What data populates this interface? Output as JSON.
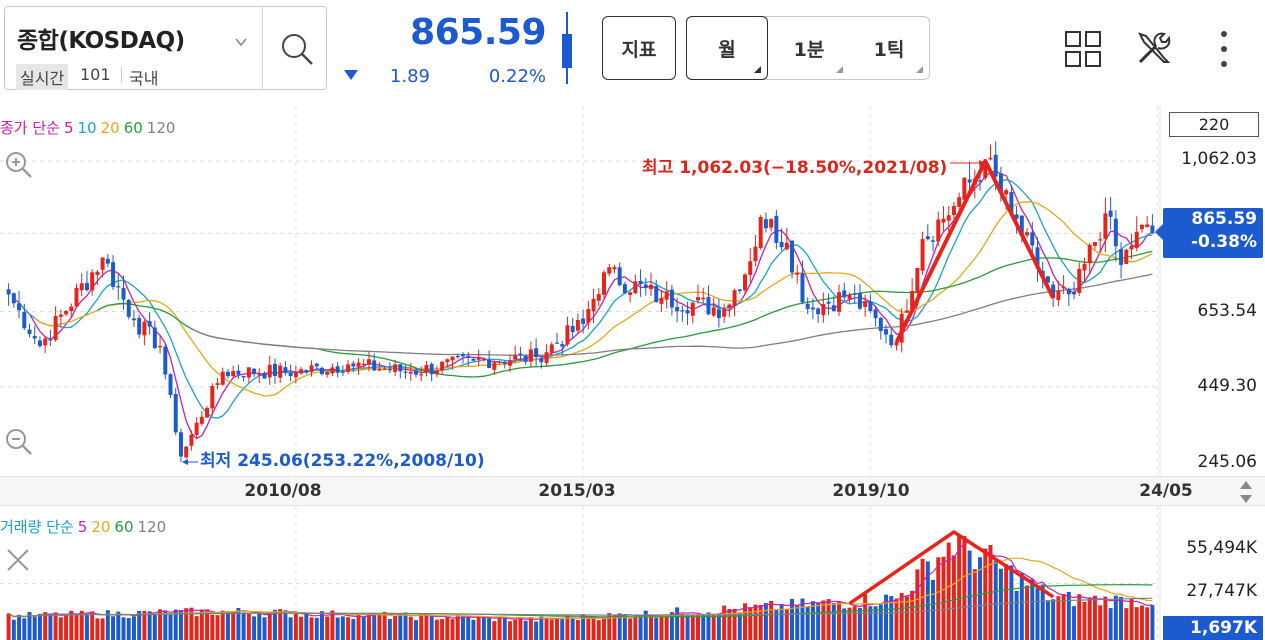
{
  "header": {
    "symbol_name": "종합(KOSDAQ)",
    "realtime_badge": "실시간",
    "code": "101",
    "market": "국내",
    "price": "865.59",
    "change": "1.89",
    "change_rate": "0.22%",
    "change_direction": "down",
    "indicator_label": "지표",
    "periods": [
      {
        "label": "월",
        "selected": true
      },
      {
        "label": "1분",
        "selected": false
      },
      {
        "label": "1틱",
        "selected": false
      }
    ],
    "icons": [
      "search-icon",
      "chevron-down-icon",
      "layout-grid-icon",
      "tools-icon",
      "more-vertical-icon"
    ]
  },
  "colors": {
    "up": "#e8231a",
    "down": "#1c5ad0",
    "ma5": "#c71fb3",
    "ma10": "#1aa3c7",
    "ma20": "#e6a81a",
    "ma60": "#2a9a3a",
    "ma120": "#808080",
    "annotation": "#e8231a"
  },
  "price_panel": {
    "legend": {
      "title": "종가 단순",
      "items": [
        {
          "label": "5",
          "color": "#c71fb3"
        },
        {
          "label": "10",
          "color": "#1aa3c7"
        },
        {
          "label": "20",
          "color": "#e6a81a"
        },
        {
          "label": "60",
          "color": "#2a9a3a"
        },
        {
          "label": "120",
          "color": "#808080"
        }
      ]
    },
    "period_count": "220",
    "y_ticks": [
      "1,062.03",
      "653.54",
      "449.30",
      "245.06"
    ],
    "price_tag": {
      "price": "865.59",
      "rate": "-0.38%"
    },
    "high_label": "최고 1,062.03(−18.50%,2021/08)",
    "low_label": "최저 245.06(253.22%,2008/10)"
  },
  "x_axis": {
    "ticks": [
      "2010/08",
      "2015/03",
      "2019/10",
      "24/05"
    ]
  },
  "volume_panel": {
    "legend": {
      "title": "거래량 단순",
      "items": [
        {
          "label": "5",
          "color": "#c71fb3"
        },
        {
          "label": "20",
          "color": "#e6a81a"
        },
        {
          "label": "60",
          "color": "#2a9a3a"
        },
        {
          "label": "120",
          "color": "#808080"
        }
      ]
    },
    "y_ticks": [
      "55,494K",
      "27,747K"
    ],
    "current_volume": "1,697K"
  },
  "chart_data": {
    "type": "candlestick",
    "interval": "monthly",
    "period_count": 220,
    "y_range": [
      245.06,
      1062.03
    ],
    "y_ticks": [
      245.06,
      449.3,
      653.54,
      1062.03
    ],
    "x_ticks": [
      "2010/08",
      "2015/03",
      "2019/10",
      "24/05"
    ],
    "close_anchors": [
      {
        "date": "2006/01",
        "close": 700
      },
      {
        "date": "2006/07",
        "close": 560
      },
      {
        "date": "2007/07",
        "close": 800
      },
      {
        "date": "2008/01",
        "close": 630
      },
      {
        "date": "2008/06",
        "close": 560
      },
      {
        "date": "2008/10",
        "close": 260
      },
      {
        "date": "2009/06",
        "close": 490
      },
      {
        "date": "2010/08",
        "close": 490
      },
      {
        "date": "2011/06",
        "close": 510
      },
      {
        "date": "2012/06",
        "close": 490
      },
      {
        "date": "2013/06",
        "close": 520
      },
      {
        "date": "2014/06",
        "close": 530
      },
      {
        "date": "2015/03",
        "close": 620
      },
      {
        "date": "2015/07",
        "close": 760
      },
      {
        "date": "2016/06",
        "close": 690
      },
      {
        "date": "2017/06",
        "close": 660
      },
      {
        "date": "2017/11",
        "close": 790
      },
      {
        "date": "2018/01",
        "close": 910
      },
      {
        "date": "2018/06",
        "close": 840
      },
      {
        "date": "2018/10",
        "close": 660
      },
      {
        "date": "2019/06",
        "close": 700
      },
      {
        "date": "2020/03",
        "close": 570
      },
      {
        "date": "2020/08",
        "close": 850
      },
      {
        "date": "2021/02",
        "close": 940
      },
      {
        "date": "2021/08",
        "close": 1062.03
      },
      {
        "date": "2022/01",
        "close": 920
      },
      {
        "date": "2022/09",
        "close": 690
      },
      {
        "date": "2023/01",
        "close": 700
      },
      {
        "date": "2023/07",
        "close": 920
      },
      {
        "date": "2023/10",
        "close": 780
      },
      {
        "date": "2024/01",
        "close": 870
      },
      {
        "date": "2024/05",
        "close": 865.59
      }
    ],
    "moving_averages": [
      5,
      10,
      20,
      60,
      120
    ],
    "highest": {
      "value": 1062.03,
      "date": "2021/08",
      "pct_from_current": "-18.50%"
    },
    "lowest": {
      "value": 245.06,
      "date": "2008/10",
      "pct_from_current": "253.22%"
    },
    "current": {
      "value": 865.59,
      "rate": "-0.38%"
    },
    "volume": {
      "y_ticks": [
        "55,494K",
        "27,747K"
      ],
      "current": "1,697K",
      "level_anchors": [
        {
          "date": "2006/01",
          "value_k": 9000
        },
        {
          "date": "2009/06",
          "value_k": 12000
        },
        {
          "date": "2014/06",
          "value_k": 7000
        },
        {
          "date": "2017/11",
          "value_k": 14000
        },
        {
          "date": "2020/03",
          "value_k": 20000
        },
        {
          "date": "2021/02",
          "value_k": 55494
        },
        {
          "date": "2022/09",
          "value_k": 20000
        },
        {
          "date": "2024/05",
          "value_k": 18000
        }
      ]
    }
  }
}
